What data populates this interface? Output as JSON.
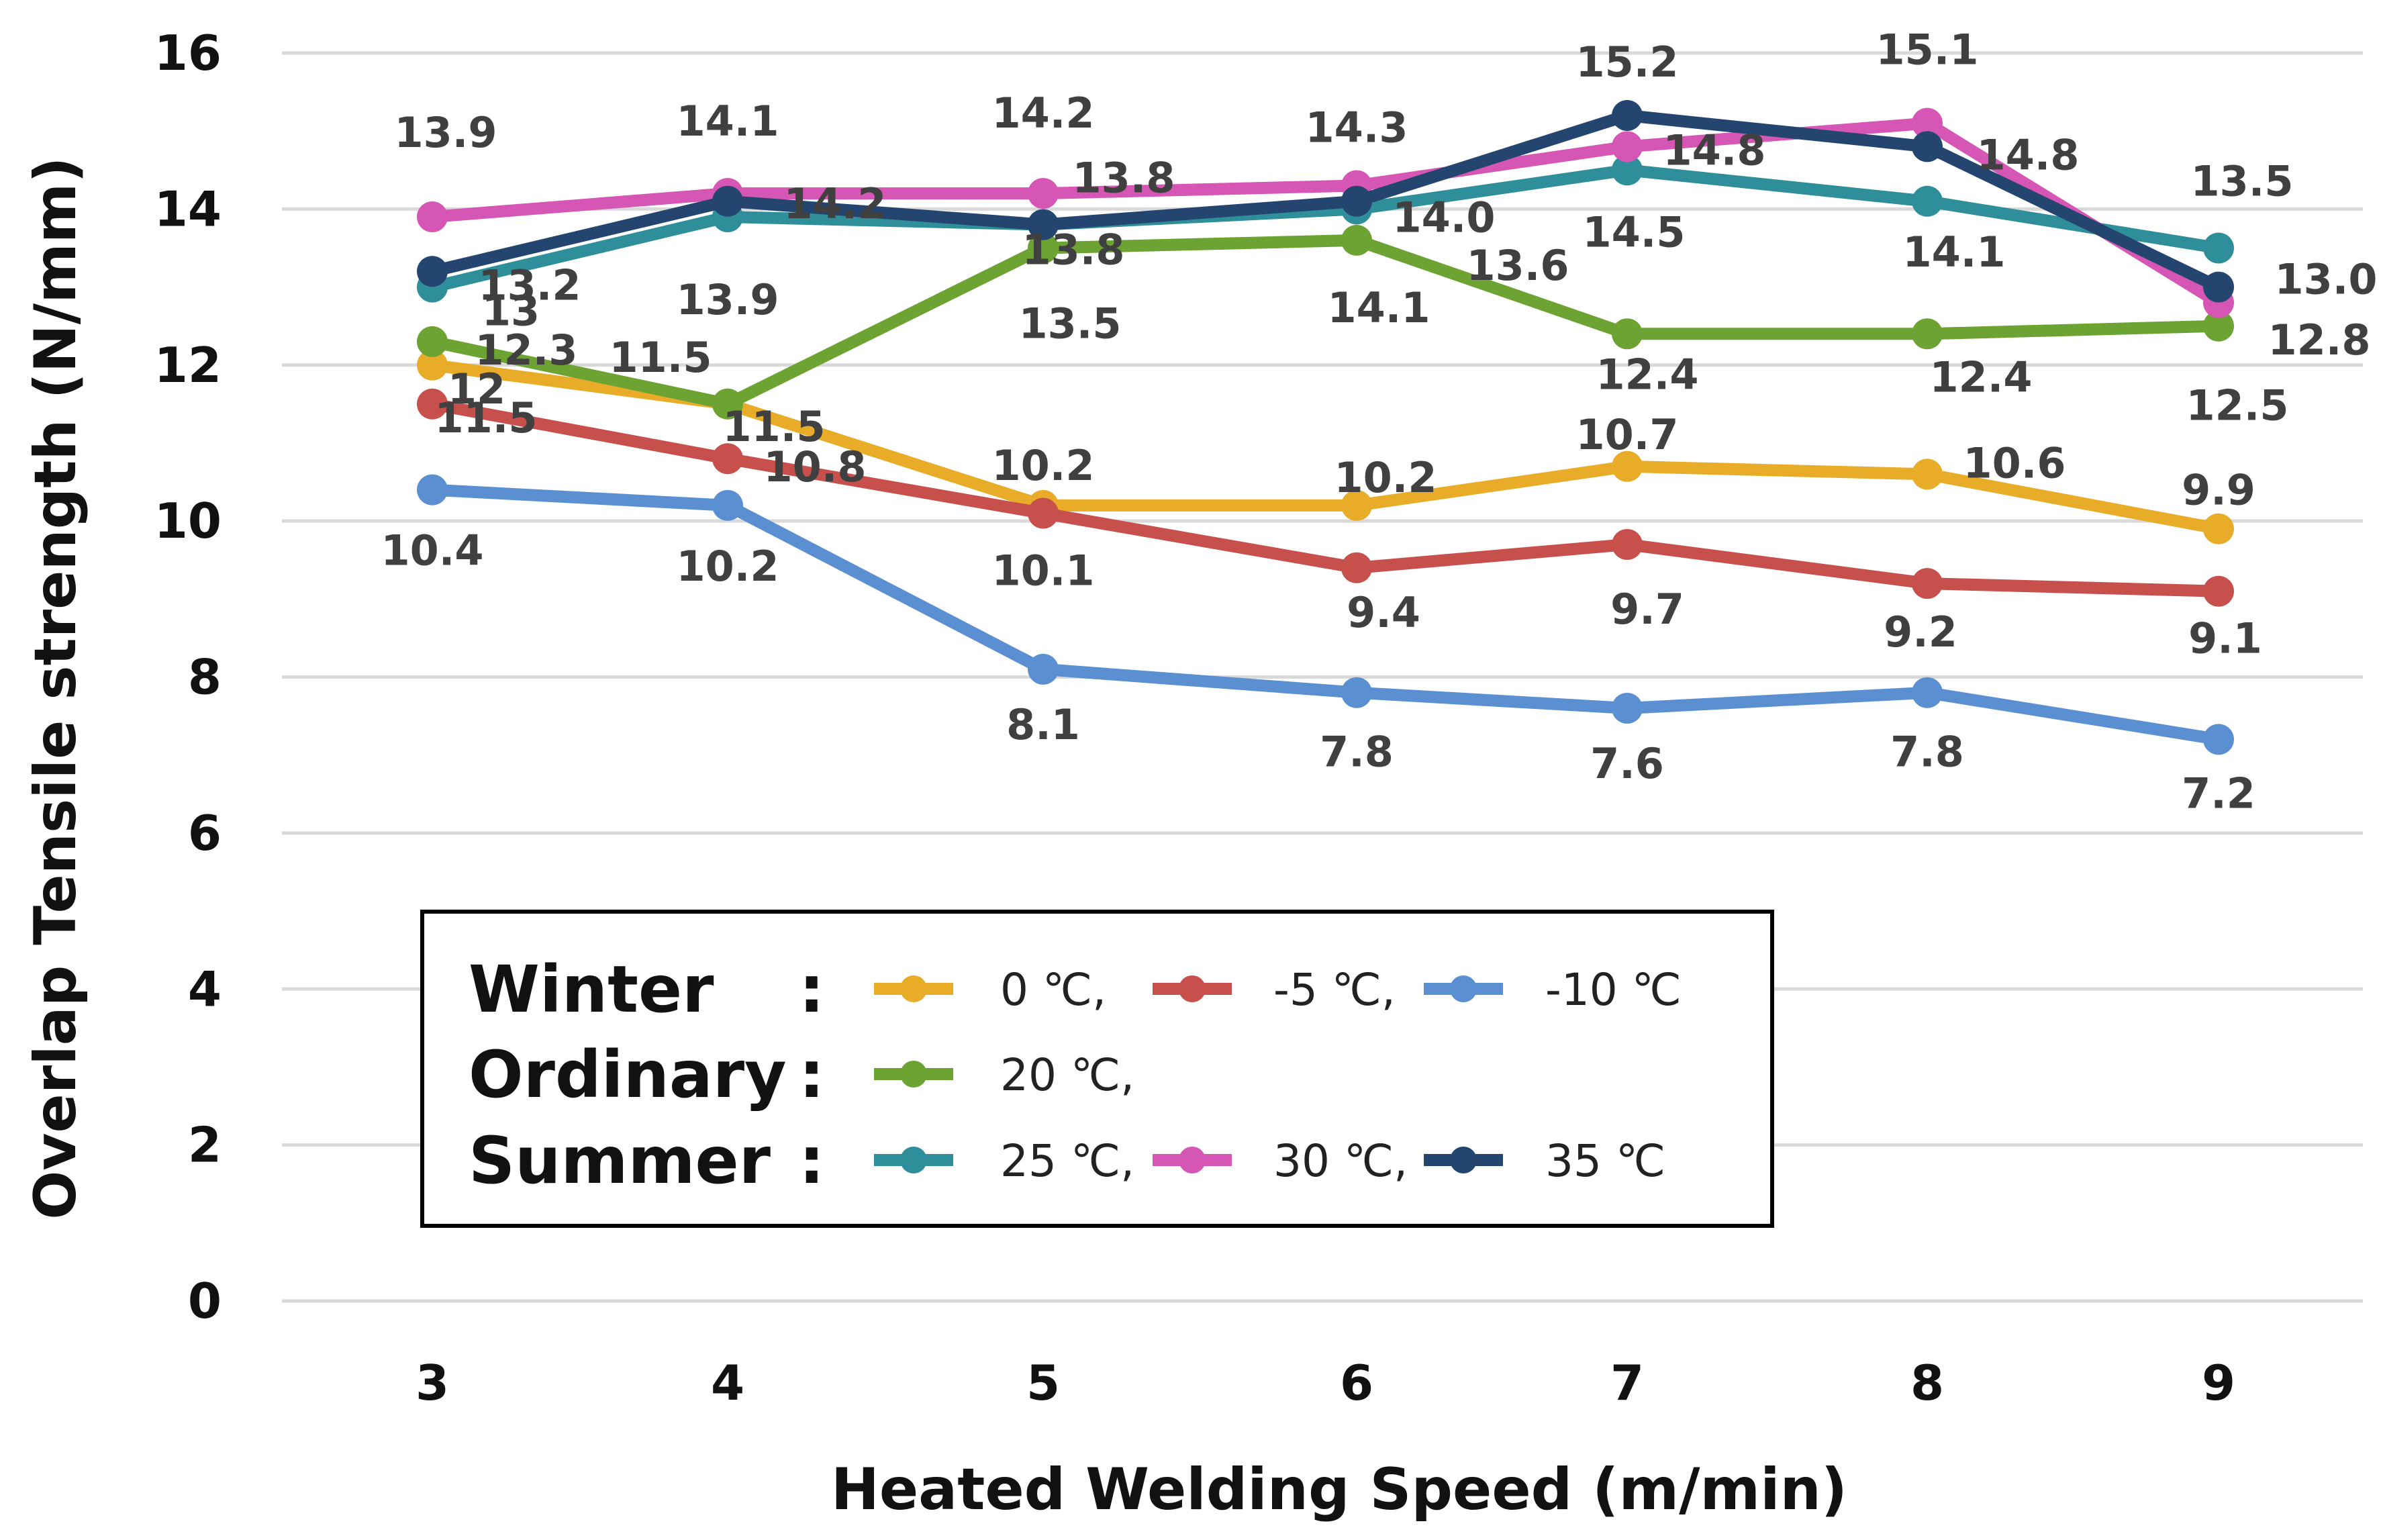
{
  "chart_data": {
    "type": "line",
    "title": "",
    "xlabel": "Heated Welding Speed (m/min)",
    "ylabel": "Overlap Tensile strength (N/mm)",
    "x": [
      3,
      4,
      5,
      6,
      7,
      8,
      9
    ],
    "ylim": [
      0,
      16
    ],
    "yticks": [
      0,
      2,
      4,
      6,
      8,
      10,
      12,
      14,
      16
    ],
    "grid": true,
    "legend_position": "bottom-left",
    "series": [
      {
        "name": "0 ℃,",
        "group": "Winter",
        "color": "#E8AC28",
        "values": [
          12.0,
          11.5,
          10.2,
          10.2,
          10.7,
          10.6,
          9.9
        ],
        "labels": [
          "12",
          "11.5",
          "10.2",
          "10.2",
          "10.7",
          "10.6",
          "9.9"
        ]
      },
      {
        "name": "-5 ℃,",
        "group": "Winter",
        "color": "#C8504C",
        "values": [
          11.5,
          10.8,
          10.1,
          9.4,
          9.7,
          9.2,
          9.1
        ],
        "labels": [
          "11.5",
          "10.8",
          "10.1",
          "9.4",
          "9.7",
          "9.2",
          "9.1"
        ]
      },
      {
        "name": "-10 ℃",
        "group": "Winter",
        "color": "#5A8FD2",
        "values": [
          10.4,
          10.2,
          8.1,
          7.8,
          7.6,
          7.8,
          7.2
        ],
        "labels": [
          "10.4",
          "10.2",
          "8.1",
          "7.8",
          "7.6",
          "7.8",
          "7.2"
        ]
      },
      {
        "name": "20 ℃,",
        "group": "Ordinary",
        "color": "#6DA332",
        "values": [
          12.3,
          11.5,
          13.5,
          13.6,
          12.4,
          12.4,
          12.5
        ],
        "labels": [
          "12.3",
          "11.5",
          "13.5",
          "13.6",
          "12.4",
          "12.4",
          "12.5"
        ]
      },
      {
        "name": "25 ℃,",
        "group": "Summer",
        "color": "#2E8E99",
        "values": [
          13.0,
          13.9,
          13.8,
          14.0,
          14.5,
          14.1,
          13.5
        ],
        "labels": [
          "13",
          "13.9",
          "13.8",
          "14.0",
          "14.5",
          "14.1",
          "13.5"
        ]
      },
      {
        "name": "30 ℃,",
        "group": "Summer",
        "color": "#D656B5",
        "values": [
          13.9,
          14.2,
          14.2,
          14.3,
          14.8,
          15.1,
          12.8
        ],
        "labels": [
          "13.9",
          "14.2",
          "14.2",
          "14.3",
          "14.8",
          "15.1",
          "12.8"
        ]
      },
      {
        "name": "35 ℃",
        "group": "Summer",
        "color": "#24456F",
        "values": [
          13.2,
          14.1,
          13.8,
          14.1,
          15.2,
          14.8,
          13.0
        ],
        "labels": [
          "13.2",
          "14.1",
          "13.8",
          "14.1",
          "15.2",
          "14.8",
          "13.0"
        ]
      }
    ]
  },
  "legend": {
    "groups": [
      {
        "label": "Winter",
        "colon": ":",
        "series": [
          "0 ℃,",
          "-5 ℃,",
          "-10 ℃"
        ]
      },
      {
        "label": "Ordinary",
        "colon": ":",
        "series": [
          "20 ℃,"
        ]
      },
      {
        "label": "Summer",
        "colon": ":",
        "series": [
          "25 ℃,",
          "30 ℃,",
          "35 ℃"
        ]
      }
    ]
  }
}
